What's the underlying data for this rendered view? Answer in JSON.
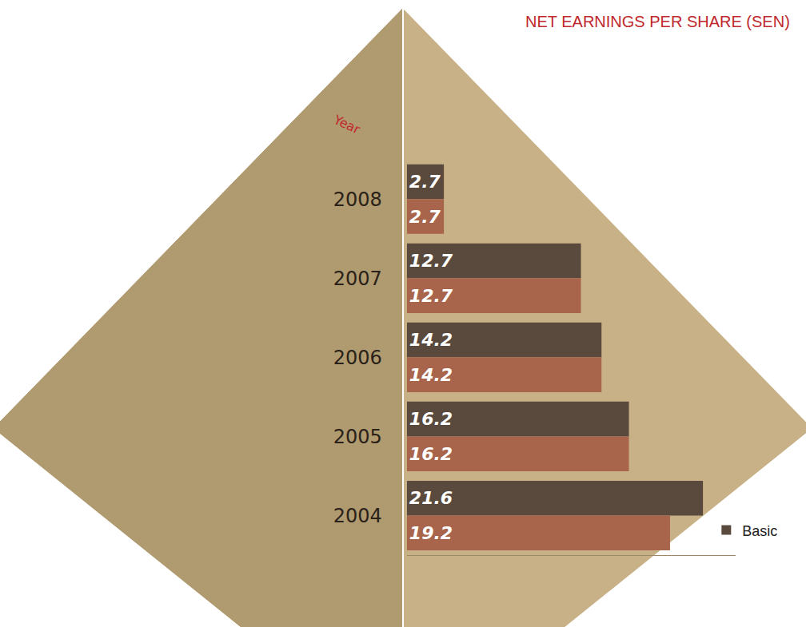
{
  "chart_data": {
    "type": "bar",
    "orientation": "horizontal",
    "title": "NET EARNINGS PER SHARE (SEN)",
    "annotations": [
      "Year"
    ],
    "categories": [
      "2008",
      "2007",
      "2006",
      "2005",
      "2004"
    ],
    "series": [
      {
        "name": "Basic",
        "color": "#5a4a3d",
        "values": [
          2.7,
          12.7,
          14.2,
          16.2,
          21.6
        ]
      },
      {
        "color": "#a8654b",
        "values": [
          2.7,
          12.7,
          14.2,
          16.2,
          19.2
        ]
      }
    ],
    "xlim": [
      0,
      24
    ],
    "data_labels": true,
    "tick_labels": "y",
    "grid": false,
    "legend": "bottom right"
  }
}
